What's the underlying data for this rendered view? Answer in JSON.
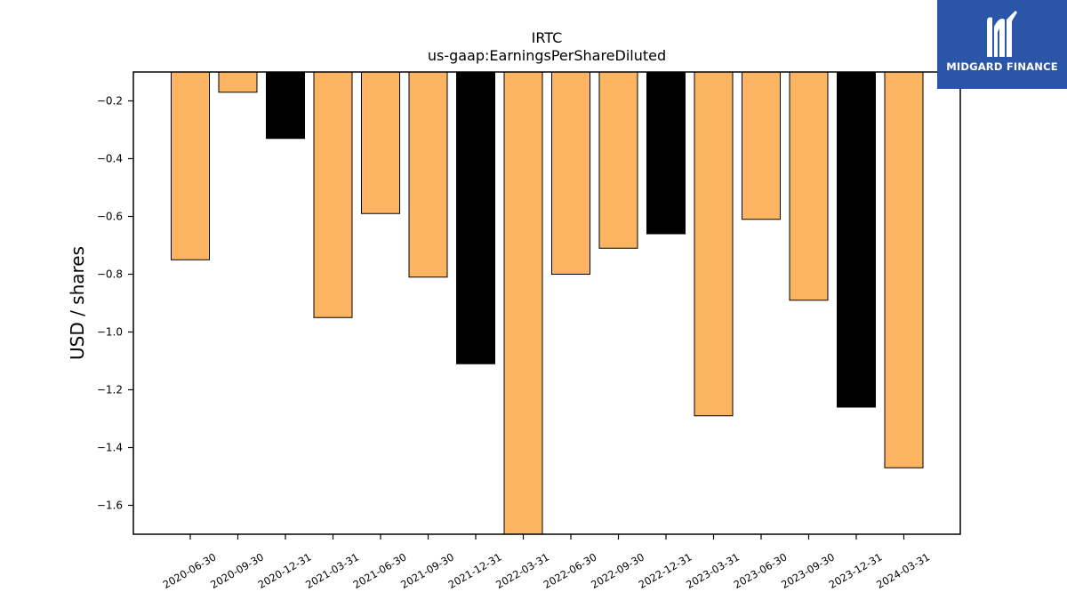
{
  "chart_data": {
    "type": "bar",
    "title": "IRTC",
    "subtitle": "us-gaap:EarningsPerShareDiluted",
    "xlabel": "",
    "ylabel": "USD / shares",
    "ylim": [
      -1.7,
      -0.1
    ],
    "yticks": [
      -0.2,
      -0.4,
      -0.6,
      -0.8,
      -1.0,
      -1.2,
      -1.4,
      -1.6
    ],
    "ytick_labels": [
      "−0.2",
      "−0.4",
      "−0.6",
      "−0.8",
      "−1.0",
      "−1.2",
      "−1.4",
      "−1.6"
    ],
    "categories": [
      "2020-06-30",
      "2020-09-30",
      "2020-12-31",
      "2021-03-31",
      "2021-06-30",
      "2021-09-30",
      "2021-12-31",
      "2022-03-31",
      "2022-06-30",
      "2022-09-30",
      "2022-12-31",
      "2023-03-31",
      "2023-06-30",
      "2023-09-30",
      "2023-12-31",
      "2024-03-31"
    ],
    "values": [
      -0.75,
      -0.17,
      -0.33,
      -0.95,
      -0.59,
      -0.81,
      -1.11,
      -1.75,
      -0.8,
      -0.71,
      -0.66,
      -1.29,
      -0.61,
      -0.89,
      -1.26,
      -1.47
    ],
    "bar_colors": [
      "#fdb462",
      "#fdb462",
      "#000000",
      "#fdb462",
      "#fdb462",
      "#fdb462",
      "#000000",
      "#fdb462",
      "#fdb462",
      "#fdb462",
      "#000000",
      "#fdb462",
      "#fdb462",
      "#fdb462",
      "#000000",
      "#fdb462"
    ],
    "grid": false,
    "legend": "none"
  },
  "logo": {
    "text": "MIDGARD FINANCE",
    "background": "#2b56a8"
  }
}
